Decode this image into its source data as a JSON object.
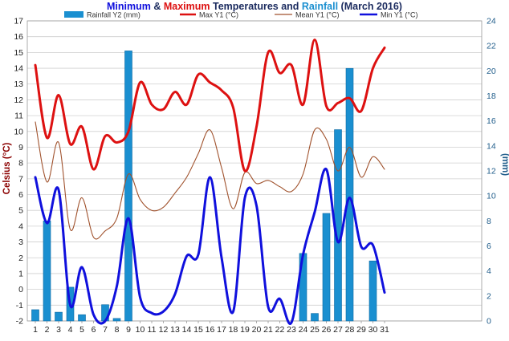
{
  "title": {
    "part1": "Minimum",
    "part2": " & ",
    "part3": "Maximum",
    "part4": " Temperatures and ",
    "part5": "Rainfall",
    "part6": " (March 2016)"
  },
  "colors": {
    "min": "#1010dd",
    "max": "#dd1111",
    "mean": "#a0522d",
    "rain": "#1a8fd0",
    "title_dark": "#1a2a5e",
    "y1_label": "#8b0000",
    "y2_label": "#1f5c8a",
    "axis_text": "#222222",
    "grid": "#cfcfcf"
  },
  "chart_data": {
    "type": "line",
    "title": "Minimum & Maximum Temperatures and Rainfall (March 2016)",
    "xlabel": "",
    "ylabel": "Celsius (°C)",
    "y2label": "(mm)",
    "x": [
      1,
      2,
      3,
      4,
      5,
      6,
      7,
      8,
      9,
      10,
      11,
      12,
      13,
      14,
      15,
      16,
      17,
      18,
      19,
      20,
      21,
      22,
      23,
      24,
      25,
      26,
      27,
      28,
      29,
      30,
      31
    ],
    "ylim": [
      -2,
      17
    ],
    "y2lim": [
      0,
      24
    ],
    "yticks": [
      -2,
      -1,
      0,
      1,
      2,
      3,
      4,
      5,
      6,
      7,
      8,
      9,
      10,
      11,
      12,
      13,
      14,
      15,
      16,
      17
    ],
    "y2ticks": [
      0,
      2,
      4,
      6,
      8,
      10,
      12,
      14,
      16,
      18,
      20,
      22,
      24
    ],
    "grid": true,
    "legend_position": "top",
    "series": [
      {
        "name": "Rainfall Y2 (mm)",
        "type": "bar",
        "axis": "y2",
        "values": [
          0.9,
          8.0,
          0.7,
          2.7,
          0.5,
          0,
          1.3,
          0.2,
          21.6,
          0,
          0,
          0,
          0,
          0,
          0,
          0,
          0,
          0,
          0,
          0,
          0,
          0,
          0,
          5.4,
          0.6,
          8.6,
          15.3,
          20.2,
          0,
          4.8,
          0
        ]
      },
      {
        "name": "Max Y1 (°C)",
        "type": "line",
        "axis": "y1",
        "values": [
          14.2,
          9.6,
          12.3,
          9.2,
          10.3,
          7.6,
          9.7,
          9.3,
          10.0,
          13.1,
          11.7,
          11.4,
          12.5,
          11.7,
          13.6,
          13.1,
          12.6,
          11.5,
          7.5,
          10.3,
          15.0,
          13.7,
          14.2,
          11.7,
          15.8,
          11.6,
          11.8,
          12.1,
          11.3,
          14.0,
          15.3
        ]
      },
      {
        "name": "Mean Y1 (°C)",
        "type": "line",
        "axis": "y1",
        "values": [
          10.6,
          6.8,
          9.3,
          3.8,
          5.8,
          3.3,
          3.7,
          4.5,
          7.3,
          5.7,
          5.0,
          5.2,
          6.1,
          7.1,
          8.6,
          10.1,
          7.7,
          5.1,
          7.4,
          6.7,
          6.9,
          6.5,
          6.2,
          7.3,
          10.1,
          9.5,
          7.5,
          9.0,
          7.1,
          8.4,
          7.6
        ]
      },
      {
        "name": "Min Y1 (°C)",
        "type": "line",
        "axis": "y1",
        "values": [
          7.1,
          4.2,
          6.3,
          -1.0,
          1.4,
          -1.6,
          -2.0,
          0.2,
          4.5,
          -0.5,
          -1.5,
          -1.4,
          -0.3,
          2.1,
          2.2,
          7.1,
          2.0,
          -1.4,
          5.8,
          5.3,
          -1.1,
          -0.6,
          -2.1,
          2.2,
          4.9,
          7.6,
          3.0,
          5.8,
          2.7,
          2.8,
          -0.2
        ]
      }
    ]
  }
}
